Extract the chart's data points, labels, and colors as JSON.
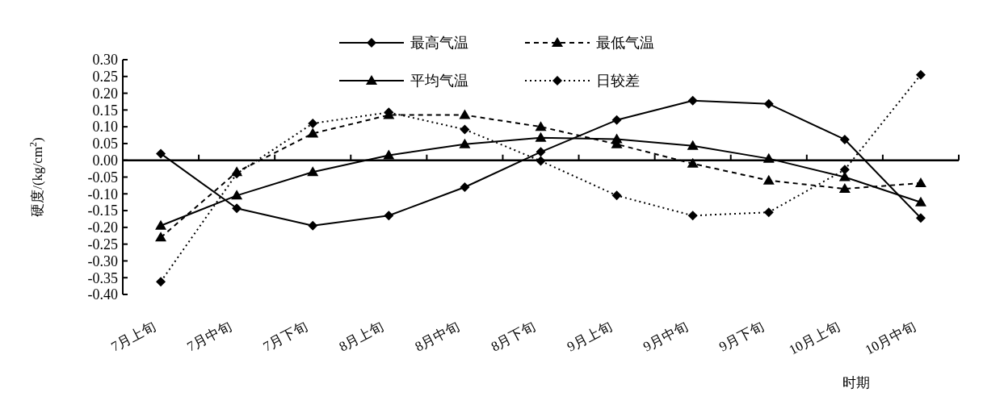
{
  "chart_data": {
    "type": "line",
    "xlabel": "时期",
    "ylabel": "硬度/(kg/cm$^{2}$)",
    "categories": [
      "7月上旬",
      "7月中旬",
      "7月下旬",
      "8月上旬",
      "8月中旬",
      "8月下旬",
      "9月上旬",
      "9月中旬",
      "9月下旬",
      "10月上旬",
      "10月中旬"
    ],
    "series": [
      {
        "name": "最高气温",
        "color": "#000000",
        "marker": "diamond",
        "line_style": "solid",
        "values": [
          0.02,
          -0.143,
          -0.195,
          -0.165,
          -0.08,
          0.025,
          0.12,
          0.178,
          0.168,
          0.062,
          -0.172
        ]
      },
      {
        "name": "最低气温",
        "color": "#000000",
        "marker": "triangle",
        "line_style": "dashed",
        "values": [
          -0.23,
          -0.035,
          0.08,
          0.135,
          0.135,
          0.1,
          0.048,
          -0.01,
          -0.06,
          -0.085,
          -0.068
        ]
      },
      {
        "name": "平均气温",
        "color": "#000000",
        "marker": "triangle",
        "line_style": "solid",
        "values": [
          -0.195,
          -0.105,
          -0.035,
          0.015,
          0.048,
          0.067,
          0.063,
          0.043,
          0.005,
          -0.05,
          -0.125
        ]
      },
      {
        "name": "日较差",
        "color": "#000000",
        "marker": "diamond",
        "line_style": "dotted",
        "values": [
          -0.362,
          -0.04,
          0.11,
          0.143,
          0.092,
          -0.002,
          -0.105,
          -0.165,
          -0.155,
          -0.028,
          0.255
        ]
      }
    ],
    "ylim": [
      -0.4,
      0.3
    ],
    "yticks": [
      {
        "value": 0.3,
        "label": "0.30"
      },
      {
        "value": 0.25,
        "label": "0.25"
      },
      {
        "value": 0.2,
        "label": "0.20"
      },
      {
        "value": 0.15,
        "label": "0.15"
      },
      {
        "value": 0.1,
        "label": "0.10"
      },
      {
        "value": 0.05,
        "label": "0.05"
      },
      {
        "value": 0,
        "label": "0.00"
      },
      {
        "value": -0.05,
        "label": "-0.05"
      },
      {
        "value": -0.1,
        "label": "-0.10"
      },
      {
        "value": -0.15,
        "label": "-0.15"
      },
      {
        "value": -0.2,
        "label": "-0.20"
      },
      {
        "value": -0.25,
        "label": "-0.25"
      },
      {
        "value": -0.3,
        "label": "-0.30"
      },
      {
        "value": -0.35,
        "label": "-0.35"
      },
      {
        "value": -0.4,
        "label": "-0.40"
      }
    ],
    "legend": "top"
  }
}
